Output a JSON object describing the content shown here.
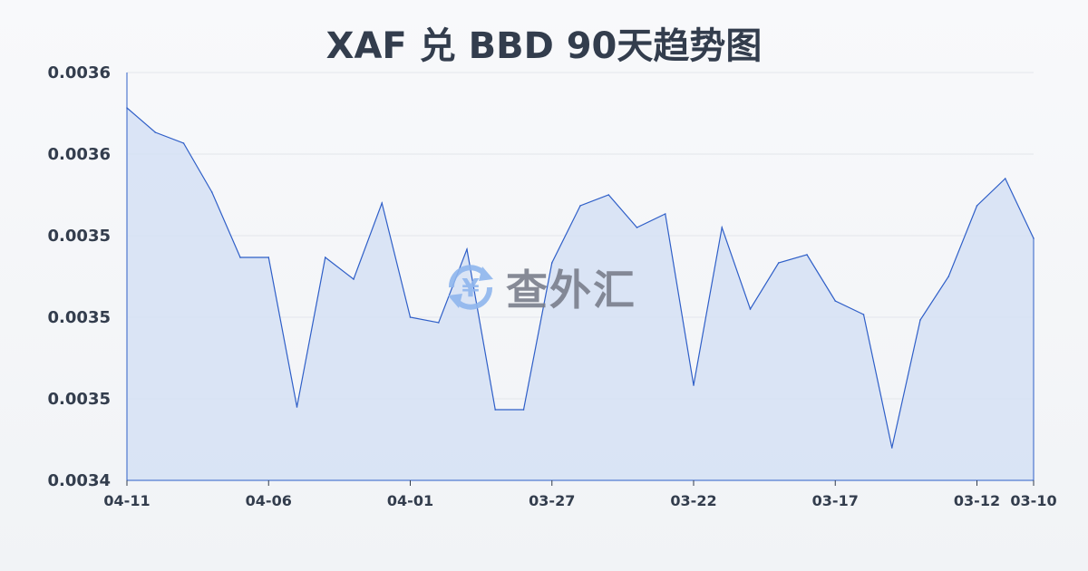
{
  "chart_data": {
    "type": "area",
    "title": "XAF 兑 BBD 90天趋势图",
    "xlabel": "",
    "ylabel": "",
    "x": [
      "04-11",
      "04-10",
      "04-09",
      "04-08",
      "04-07",
      "04-06",
      "04-05",
      "04-04",
      "04-03",
      "04-02",
      "04-01",
      "03-31",
      "03-30",
      "03-29",
      "03-28",
      "03-27",
      "03-26",
      "03-25",
      "03-24",
      "03-23",
      "03-22",
      "03-21",
      "03-20",
      "03-19",
      "03-18",
      "03-17",
      "03-16",
      "03-15",
      "03-14",
      "03-13",
      "03-12",
      "03-11",
      "03-10"
    ],
    "values": [
      0.003577,
      0.003568,
      0.003564,
      0.003546,
      0.003522,
      0.003522,
      0.003467,
      0.003522,
      0.003514,
      0.003542,
      0.0035,
      0.003498,
      0.003525,
      0.003466,
      0.003466,
      0.00352,
      0.003541,
      0.003545,
      0.003533,
      0.003538,
      0.003475,
      0.003533,
      0.003503,
      0.00352,
      0.003523,
      0.003506,
      0.003501,
      0.003452,
      0.003499,
      0.003515,
      0.003541,
      0.003551,
      0.003529
    ],
    "ylim": [
      0.00344,
      0.00359
    ],
    "yticks": [
      0.00359,
      0.00356,
      0.00353,
      0.0035,
      0.00347,
      0.00344
    ],
    "ytick_labels": [
      "0.0036",
      "0.0036",
      "0.0035",
      "0.0035",
      "0.0035",
      "0.0034"
    ],
    "xtick_labels": [
      "04-11",
      "04-06",
      "04-01",
      "03-27",
      "03-22",
      "03-17",
      "03-12",
      "03-10"
    ],
    "grid": true,
    "line_color": "#2f5fc8",
    "fill_color": "#d5e0f5"
  },
  "watermark": {
    "text": "查外汇",
    "icon": "yen-exchange-icon"
  }
}
